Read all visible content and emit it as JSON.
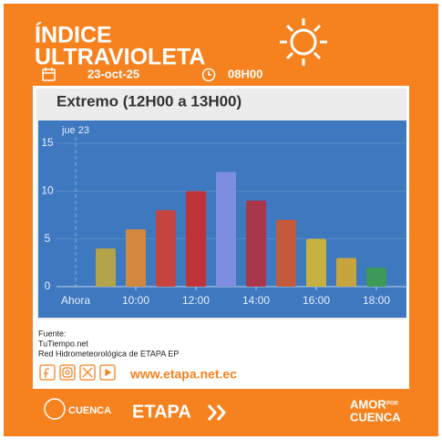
{
  "header": {
    "title_line1": "ÍNDICE",
    "title_line2": "ULTRAVIOLETA",
    "date": "23-oct-25",
    "time": "08H00"
  },
  "level": "Extremo (12H00 a 13H00)",
  "chart_data": {
    "type": "bar",
    "day_label": "jue 23",
    "now_label": "Ahora",
    "categories": [
      null,
      "10:00",
      null,
      "12:00",
      null,
      "14:00",
      null,
      "16:00",
      null,
      "18:00"
    ],
    "values": [
      4,
      6,
      8,
      10,
      12,
      9,
      7,
      5,
      3,
      2
    ],
    "colors": [
      "#b3a44a",
      "#d4873e",
      "#c4453f",
      "#be3238",
      "#7d8ee0",
      "#a9374a",
      "#c35a3c",
      "#c6b03f",
      "#c6a63c",
      "#3d9a58"
    ],
    "ylim": [
      0,
      15
    ],
    "yticks": [
      0,
      5,
      10,
      15
    ],
    "grid": true
  },
  "footer": {
    "source_label": "Fuente:",
    "source1": "TuTiempo.net",
    "source2": "Red Hidrometeorológica de ETAPA EP",
    "website": "www.etapa.net.ec",
    "logo_city": "CUENCA",
    "logo_etapa": "ETAPA",
    "brand_line1": "AMOR",
    "brand_line2": "POR",
    "brand_line3": "CUENCA"
  }
}
